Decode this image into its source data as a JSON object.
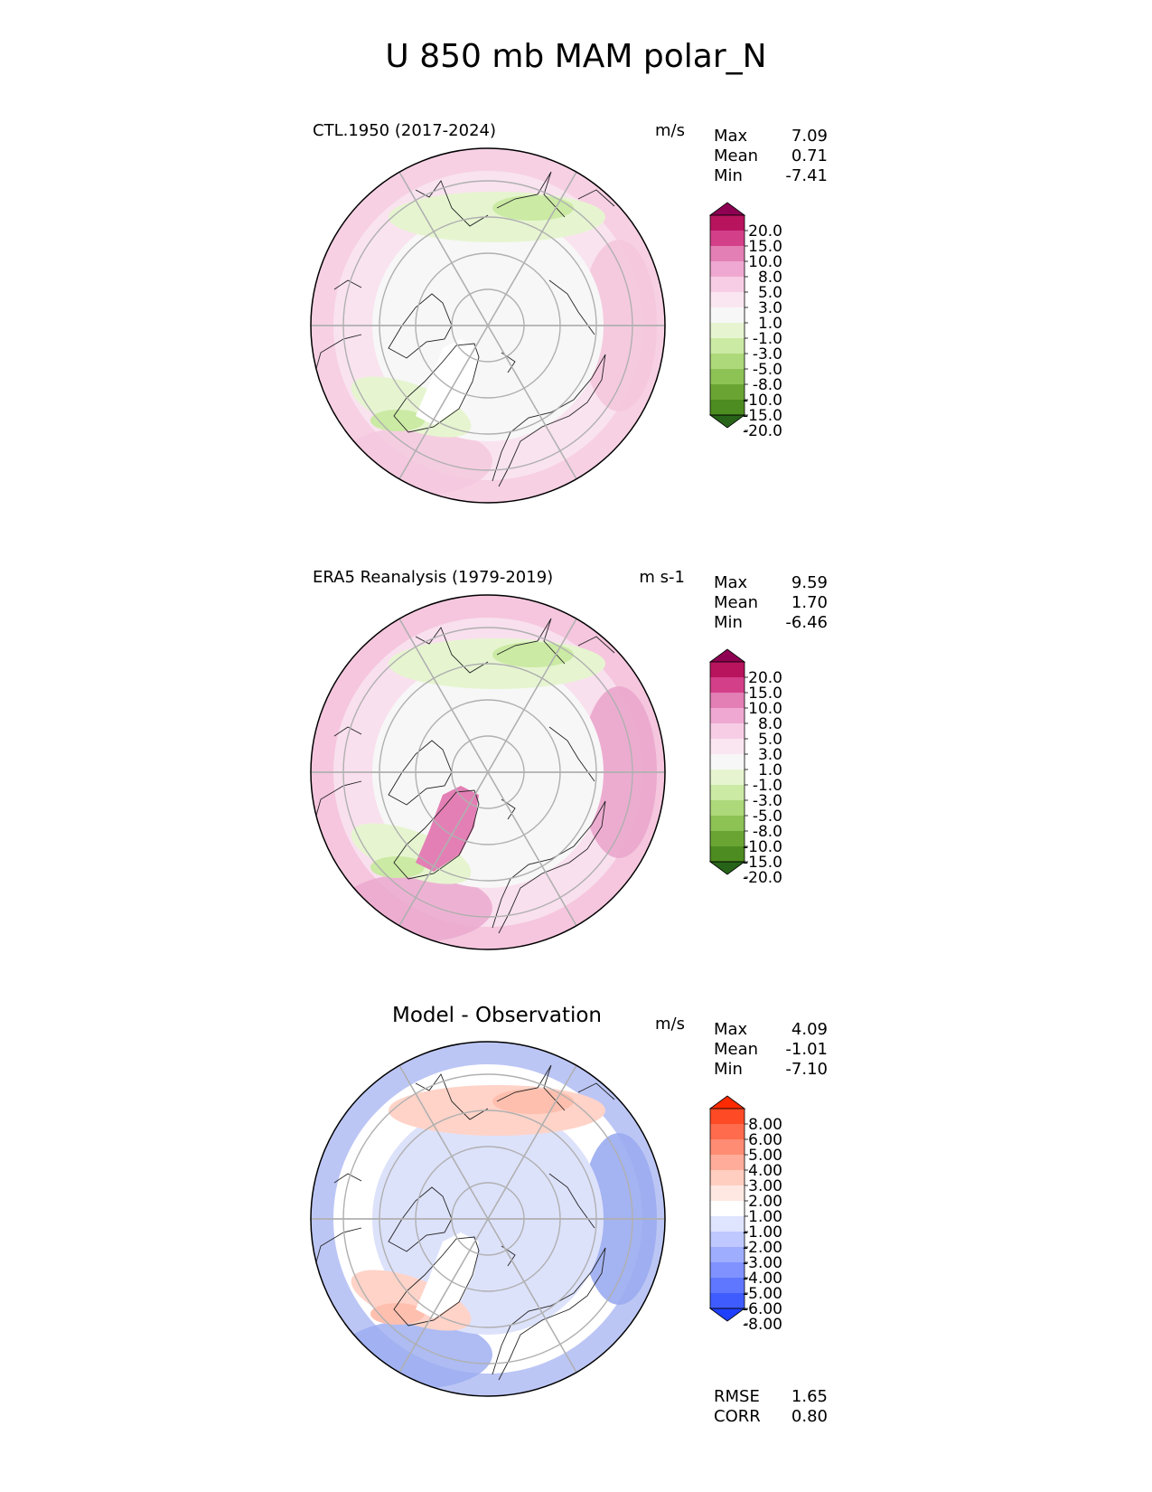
{
  "figure": {
    "title": "U 850 mb MAM polar_N"
  },
  "chart_data": [
    {
      "type": "heatmap",
      "projection": "north-polar-stereographic",
      "title": "CTL.1950 (2017-2024)",
      "units": "m/s",
      "stats": [
        {
          "label": "Max",
          "value": "7.09"
        },
        {
          "label": "Mean",
          "value": "0.71"
        },
        {
          "label": "Min",
          "value": "-7.41"
        }
      ],
      "colorbar": {
        "levels": [
          "20.0",
          "15.0",
          "10.0",
          "8.0",
          "5.0",
          "3.0",
          "1.0",
          "-1.0",
          "-3.0",
          "-5.0",
          "-8.0",
          "-10.0",
          "-15.0",
          "-20.0"
        ],
        "colors": [
          "#8e0152",
          "#b8145e",
          "#d43f8a",
          "#e37fb5",
          "#efa8d1",
          "#f7cde5",
          "#fae6f1",
          "#f7f7f7",
          "#e6f5d0",
          "#cbeaa4",
          "#add97a",
          "#8dc255",
          "#6aa534",
          "#4d8c20",
          "#276419"
        ]
      },
      "fields": {
        "background": "#f9e3ef",
        "low_lat_belt": "#f7d0e4",
        "arctic": "#f7f7f7",
        "north_pacific": "#f4c7dd",
        "greenland": "#ffffff",
        "weak_negative": "#e6f5d0",
        "moderate_negative": "#cbeaa4"
      }
    },
    {
      "type": "heatmap",
      "projection": "north-polar-stereographic",
      "title": "ERA5 Reanalysis (1979-2019)",
      "units": "m s-1",
      "stats": [
        {
          "label": "Max",
          "value": "9.59"
        },
        {
          "label": "Mean",
          "value": "1.70"
        },
        {
          "label": "Min",
          "value": "-6.46"
        }
      ],
      "colorbar": {
        "levels": [
          "20.0",
          "15.0",
          "10.0",
          "8.0",
          "5.0",
          "3.0",
          "1.0",
          "-1.0",
          "-3.0",
          "-5.0",
          "-8.0",
          "-10.0",
          "-15.0",
          "-20.0"
        ],
        "colors": [
          "#8e0152",
          "#b8145e",
          "#d43f8a",
          "#e37fb5",
          "#efa8d1",
          "#f7cde5",
          "#fae6f1",
          "#f7f7f7",
          "#e6f5d0",
          "#cbeaa4",
          "#add97a",
          "#8dc255",
          "#6aa534",
          "#4d8c20",
          "#276419"
        ]
      },
      "fields": {
        "background": "#f9e0ee",
        "low_lat_belt": "#f5c6de",
        "arctic": "#f7f7f7",
        "north_pacific": "#eaa6cc",
        "greenland": "#e37fb5",
        "weak_negative": "#e6f5d0",
        "moderate_negative": "#cbeaa4"
      }
    },
    {
      "type": "heatmap",
      "projection": "north-polar-stereographic",
      "title": "Model - Observation",
      "units": "m/s",
      "stats": [
        {
          "label": "Max",
          "value": "4.09"
        },
        {
          "label": "Mean",
          "value": "-1.01"
        },
        {
          "label": "Min",
          "value": "-7.10"
        }
      ],
      "colorbar": {
        "levels": [
          "8.00",
          "6.00",
          "5.00",
          "4.00",
          "3.00",
          "2.00",
          "1.00",
          "-1.00",
          "-2.00",
          "-3.00",
          "-4.00",
          "-5.00",
          "-6.00",
          "-8.00"
        ],
        "colors": [
          "#ff2a00",
          "#ff4a26",
          "#ff6b4d",
          "#ff8c73",
          "#ffad9a",
          "#ffcec0",
          "#ffe8e2",
          "#ffffff",
          "#dfe4ff",
          "#bfc9ff",
          "#9fadff",
          "#7f92ff",
          "#5f77ff",
          "#3f5cff",
          "#1f40ff"
        ]
      },
      "metrics": [
        {
          "label": "RMSE",
          "value": "1.65"
        },
        {
          "label": "CORR",
          "value": "0.80"
        }
      ],
      "fields": {
        "background": "#ffffff",
        "low_lat_belt": "#bcc6f5",
        "arctic": "#dde2fb",
        "north_pacific": "#9aabf0",
        "greenland": "#ffffff",
        "weak_negative": "#ffd3c8",
        "moderate_negative": "#ffbfae"
      }
    }
  ]
}
